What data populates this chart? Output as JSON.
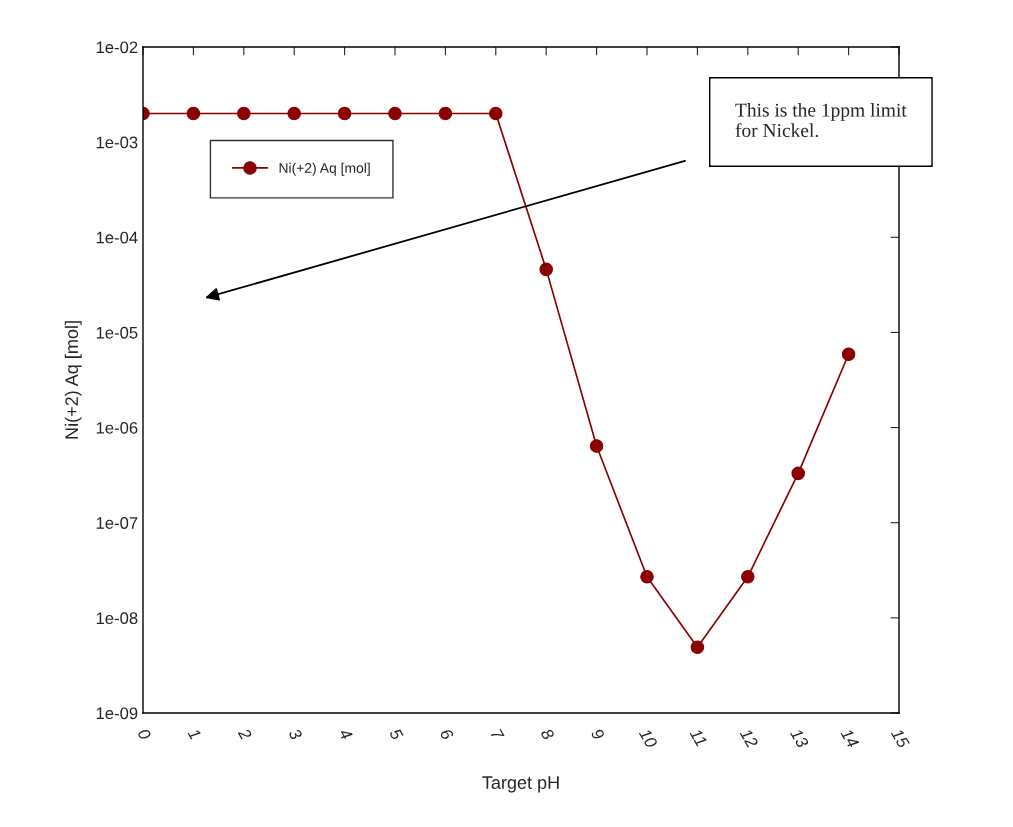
{
  "chart_data": {
    "type": "line",
    "xlabel": "Target pH",
    "ylabel": "Ni(+2) Aq [mol]",
    "x": [
      0,
      1,
      2,
      3,
      4,
      5,
      6,
      7,
      8,
      9,
      10,
      11,
      12,
      13,
      14
    ],
    "series": [
      {
        "name": "Ni(+2) Aq [mol]",
        "color": "#8b0000",
        "values": [
          0.002,
          0.002,
          0.002,
          0.002,
          0.002,
          0.002,
          0.002,
          0.002,
          4.6e-05,
          6.4e-07,
          2.7e-08,
          4.9e-09,
          2.7e-08,
          3.3e-07,
          5.9e-06
        ]
      }
    ],
    "log": "y",
    "xlim": [
      0,
      15
    ],
    "xticks": [
      0,
      1,
      2,
      3,
      4,
      5,
      6,
      7,
      8,
      9,
      10,
      11,
      12,
      13,
      14,
      15
    ],
    "ylim": [
      1e-09,
      0.01
    ],
    "yticks": [
      {
        "value": 1e-09,
        "label": "1e-09"
      },
      {
        "value": 1e-08,
        "label": "1e-08"
      },
      {
        "value": 1e-07,
        "label": "1e-07"
      },
      {
        "value": 1e-06,
        "label": "1e-06"
      },
      {
        "value": 1e-05,
        "label": "1e-05"
      },
      {
        "value": 0.0001,
        "label": "1e-04"
      },
      {
        "value": 0.001,
        "label": "1e-03"
      },
      {
        "value": 0.01,
        "label": "1e-02"
      }
    ],
    "annotations": [
      "This is the 1ppm limit\nfor Nickel."
    ],
    "marker": "circle",
    "line_style": "solid",
    "grid": false,
    "legend": "top left"
  }
}
